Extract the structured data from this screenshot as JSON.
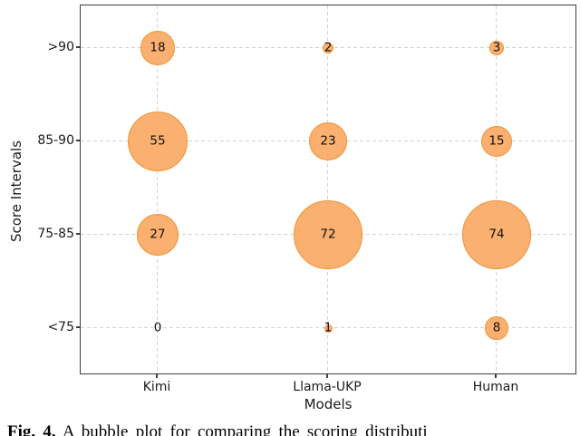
{
  "chart_data": {
    "type": "scatter",
    "subtype": "bubble",
    "title": "",
    "xlabel": "Models",
    "ylabel": "Score Intervals",
    "x_categories": [
      "Kimi",
      "Llama-UKP",
      "Human"
    ],
    "y_categories": [
      ">90",
      "85-90",
      "75-85",
      "<75"
    ],
    "series": [
      {
        "name": "Kimi",
        "values": [
          18,
          55,
          27,
          0
        ]
      },
      {
        "name": "Llama-UKP",
        "values": [
          2,
          23,
          72,
          1
        ]
      },
      {
        "name": "Human",
        "values": [
          3,
          15,
          74,
          8
        ]
      }
    ],
    "grid": "dashed both axes",
    "legend_position": "none",
    "bubble_fill_color": "#F9A760",
    "bubble_edge_color": "#EE9335",
    "size_encoding": "bubble area proportional to value; zero values shown as label only"
  },
  "caption": {
    "label": "Fig. 4.",
    "text": "A bubble plot for comparing the scoring distributi"
  }
}
